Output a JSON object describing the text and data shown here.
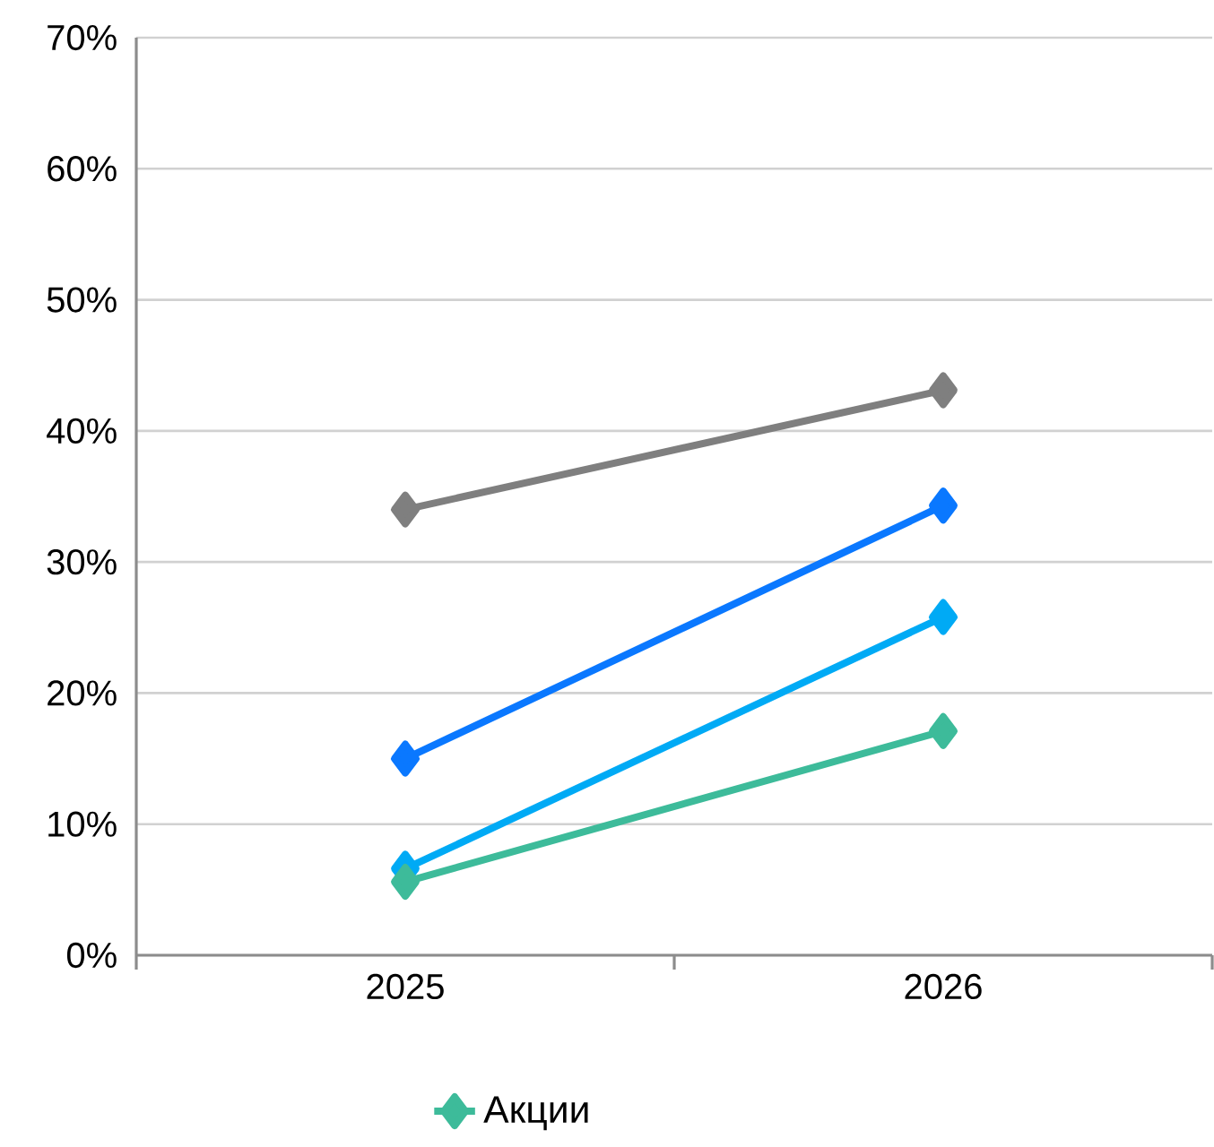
{
  "chart_data": {
    "type": "line",
    "categories": [
      "2025",
      "2026"
    ],
    "series": [
      {
        "color": "#7f7f7f",
        "values": [
          34.0,
          43.1
        ]
      },
      {
        "color": "#0a78ff",
        "values": [
          15.0,
          34.3
        ]
      },
      {
        "color": "#00aaf5",
        "values": [
          6.6,
          25.8
        ]
      },
      {
        "name": "Акции",
        "color": "#3dbb9a",
        "values": [
          5.6,
          17.1
        ]
      }
    ],
    "ylim": [
      0,
      70
    ],
    "yticks": [
      {
        "value": 0,
        "label": "0%"
      },
      {
        "value": 10,
        "label": "10%"
      },
      {
        "value": 20,
        "label": "20%"
      },
      {
        "value": 30,
        "label": "30%"
      },
      {
        "value": 40,
        "label": "40%"
      },
      {
        "value": 50,
        "label": "50%"
      },
      {
        "value": 60,
        "label": "60%"
      },
      {
        "value": 70,
        "label": "70%"
      }
    ],
    "grid": "y",
    "legend": "bottom",
    "marker": "diamond",
    "line_style": "solid"
  }
}
